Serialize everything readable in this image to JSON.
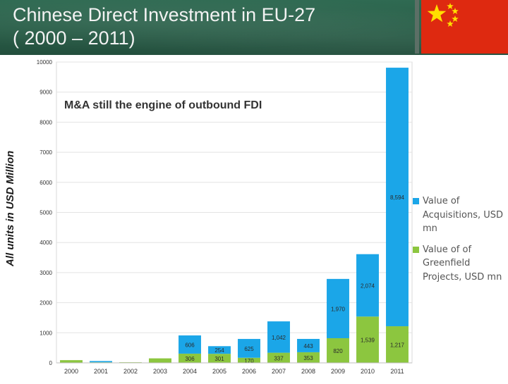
{
  "slide": {
    "title_line1": "Chinese Direct Investment in EU-27",
    "title_line2": "( 2000 – 2011)",
    "y_axis_note": "All units in USD Million"
  },
  "colors": {
    "acquisitions": "#1ba6e8",
    "greenfield": "#8cc63f",
    "flag_red": "#de2910",
    "flag_star": "#ffde00"
  },
  "chart_data": {
    "type": "bar",
    "stacked": true,
    "title": "M&A still the engine of outbound FDI",
    "xlabel": "",
    "ylabel": "All units in USD Million",
    "ylim": [
      0,
      10000
    ],
    "yticks": [
      0,
      1000,
      2000,
      3000,
      4000,
      5000,
      6000,
      7000,
      8000,
      9000,
      10000
    ],
    "grid": true,
    "legend_position": "right",
    "categories": [
      "2000",
      "2001",
      "2002",
      "2003",
      "2004",
      "2005",
      "2006",
      "2007",
      "2008",
      "2009",
      "2010",
      "2011"
    ],
    "series": [
      {
        "name": "Value of of Greenfield Projects, USD mn",
        "color_key": "greenfield",
        "values": [
          90,
          20,
          20,
          150,
          306,
          301,
          170,
          337,
          353,
          820,
          1539,
          1217
        ],
        "labels": [
          "",
          "",
          "",
          "",
          "306",
          "301",
          "170",
          "337",
          "353",
          "820",
          "1,539",
          "1,217"
        ]
      },
      {
        "name": "Value of Acquisitions, USD mn",
        "color_key": "acquisitions",
        "values": [
          0,
          40,
          0,
          0,
          606,
          254,
          625,
          1042,
          443,
          1970,
          2074,
          8594
        ],
        "labels": [
          "",
          "",
          "",
          "",
          "606",
          "254",
          "625",
          "1,042",
          "443",
          "1,970",
          "2,074",
          "8,594"
        ]
      }
    ]
  }
}
